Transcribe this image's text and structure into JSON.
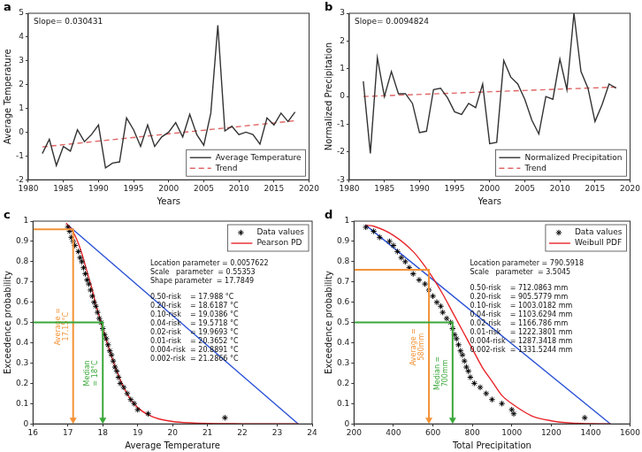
{
  "chart_data": [
    {
      "panel": "a",
      "type": "line",
      "x_label": "Years",
      "y_label": "Average Temperature",
      "annotation": "Slope= 0.030431",
      "grid": false,
      "legend": "lower right",
      "xlim": [
        1980,
        2020
      ],
      "xticks": [
        1980,
        1985,
        1990,
        1995,
        2000,
        2005,
        2010,
        2015,
        2020
      ],
      "ylim": [
        -2,
        5
      ],
      "yticks": [
        -2,
        -1,
        0,
        1,
        2,
        3,
        4,
        5
      ],
      "series": [
        {
          "name": "Average Temperature",
          "color": "#333333",
          "line_style": "solid",
          "x": [
            1982,
            1983,
            1984,
            1985,
            1986,
            1987,
            1988,
            1989,
            1990,
            1991,
            1992,
            1993,
            1994,
            1995,
            1996,
            1997,
            1998,
            1999,
            2000,
            2001,
            2002,
            2003,
            2004,
            2005,
            2006,
            2007,
            2008,
            2009,
            2010,
            2011,
            2012,
            2013,
            2014,
            2015,
            2016,
            2017,
            2018
          ],
          "values": [
            -0.9,
            -0.3,
            -1.4,
            -0.6,
            -0.8,
            0.1,
            -0.4,
            -0.1,
            0.3,
            -1.5,
            -1.3,
            -1.25,
            0.6,
            0.1,
            -0.6,
            0.3,
            -0.6,
            -0.2,
            0.0,
            0.4,
            -0.2,
            0.75,
            -0.1,
            -0.55,
            0.8,
            4.5,
            0.05,
            0.25,
            -0.1,
            0.0,
            -0.1,
            -0.5,
            0.6,
            0.3,
            0.8,
            0.45,
            0.85
          ]
        },
        {
          "name": "Trend",
          "color": "#e06666",
          "line_style": "dashed",
          "x": [
            1982,
            2018
          ],
          "values": [
            -0.62,
            0.48
          ]
        }
      ]
    },
    {
      "panel": "b",
      "type": "line",
      "x_label": "Years",
      "y_label": "Normalized Precipitation",
      "annotation": "Slope= 0.0094824",
      "grid": false,
      "legend": "lower right",
      "xlim": [
        1980,
        2020
      ],
      "xticks": [
        1980,
        1985,
        1990,
        1995,
        2000,
        2005,
        2010,
        2015,
        2020
      ],
      "ylim": [
        -3,
        3
      ],
      "yticks": [
        -3,
        -2,
        -1,
        0,
        1,
        2,
        3
      ],
      "series": [
        {
          "name": "Normalized Precipitation",
          "color": "#333333",
          "line_style": "solid",
          "x": [
            1982,
            1983,
            1984,
            1985,
            1986,
            1987,
            1988,
            1989,
            1990,
            1991,
            1992,
            1993,
            1994,
            1995,
            1996,
            1997,
            1998,
            1999,
            2000,
            2001,
            2002,
            2003,
            2004,
            2005,
            2006,
            2007,
            2008,
            2009,
            2010,
            2011,
            2012,
            2013,
            2014,
            2015,
            2016,
            2017,
            2018
          ],
          "values": [
            0.55,
            -2.05,
            1.4,
            0.0,
            0.9,
            0.1,
            0.1,
            -0.25,
            -1.3,
            -1.25,
            0.25,
            0.3,
            -0.05,
            -0.55,
            -0.65,
            -0.25,
            -0.4,
            0.45,
            -1.7,
            -1.65,
            1.3,
            0.7,
            0.45,
            -0.1,
            -0.85,
            -1.35,
            0.0,
            -0.1,
            1.35,
            0.25,
            3.0,
            0.9,
            0.3,
            -0.9,
            -0.3,
            0.45,
            0.3
          ]
        },
        {
          "name": "Trend",
          "color": "#e06666",
          "line_style": "dashed",
          "x": [
            1982,
            2018
          ],
          "values": [
            0.0,
            0.34
          ]
        }
      ]
    },
    {
      "panel": "c",
      "type": "line",
      "x_label": "Average Temperature",
      "y_label": "Exceedence probability",
      "grid": false,
      "legend": "upper right",
      "text_blocks": [
        [
          "Location parameter = 0.0057622",
          "Scale   parameter  = 0.55353",
          "Shape parameter  = 17.7849"
        ],
        [
          "0.50-risk    = 17.988 °C",
          "0.20-risk    = 18.6187 °C",
          "0.10-risk    = 19.0386 °C",
          "0.04-risk    = 19.5718 °C",
          "0.02-risk    = 19.9693 °C",
          "0.01-risk    = 20.3652 °C",
          "0.004-risk  = 20.8891 °C",
          "0.002-risk  = 21.2866 °C"
        ]
      ],
      "xlim": [
        16,
        24
      ],
      "xticks": [
        16,
        17,
        18,
        19,
        20,
        21,
        22,
        23,
        24
      ],
      "ylim": [
        0,
        1
      ],
      "yticks": [
        0,
        0.1,
        0.2,
        0.3,
        0.4,
        0.5,
        0.6,
        0.7,
        0.8,
        0.9,
        1
      ],
      "guides": [
        {
          "label": [
            "Average =",
            "17.15°C"
          ],
          "x": 17.15,
          "y": 0.96,
          "color": "#f39237"
        },
        {
          "label": [
            "Median",
            "= 18°C"
          ],
          "x": 18,
          "y": 0.5,
          "color": "#3aa83a"
        }
      ],
      "series": [
        {
          "name": "Data values",
          "type": "scatter",
          "marker": "star",
          "color": "#000000",
          "x": [
            17.0,
            17.05,
            17.1,
            17.15,
            17.2,
            17.3,
            17.35,
            17.4,
            17.45,
            17.5,
            17.55,
            17.6,
            17.65,
            17.7,
            17.75,
            17.8,
            17.85,
            17.9,
            17.95,
            18.0,
            18.05,
            18.1,
            18.15,
            18.2,
            18.25,
            18.3,
            18.35,
            18.4,
            18.45,
            18.5,
            18.6,
            18.7,
            18.8,
            18.9,
            19.0,
            19.3,
            21.5
          ],
          "values": [
            0.97,
            0.95,
            0.92,
            0.9,
            0.88,
            0.85,
            0.82,
            0.8,
            0.77,
            0.74,
            0.71,
            0.69,
            0.66,
            0.63,
            0.6,
            0.58,
            0.55,
            0.52,
            0.5,
            0.47,
            0.44,
            0.42,
            0.39,
            0.36,
            0.34,
            0.31,
            0.28,
            0.26,
            0.23,
            0.2,
            0.18,
            0.15,
            0.12,
            0.1,
            0.07,
            0.05,
            0.03
          ]
        },
        {
          "name": "Pearson PD",
          "type": "line",
          "line_style": "smooth",
          "color": "#e8262b",
          "x": [
            16.95,
            17.0,
            17.1,
            17.2,
            17.3,
            17.4,
            17.5,
            17.6,
            17.7,
            17.8,
            17.9,
            18.0,
            18.2,
            18.4,
            18.6,
            18.8,
            19.0,
            19.3,
            19.6,
            20.0,
            20.5,
            21.0,
            22.0,
            23.0,
            23.6
          ],
          "values": [
            0.99,
            0.98,
            0.96,
            0.93,
            0.89,
            0.84,
            0.78,
            0.72,
            0.66,
            0.59,
            0.53,
            0.47,
            0.36,
            0.26,
            0.18,
            0.12,
            0.08,
            0.045,
            0.025,
            0.012,
            0.005,
            0.002,
            0.0005,
            0.0001,
            0.0
          ]
        },
        {
          "type": "line",
          "line_style": "solid",
          "color": "#2a52d6",
          "x": [
            17,
            23.6
          ],
          "values": [
            0.98,
            0
          ]
        }
      ]
    },
    {
      "panel": "d",
      "type": "line",
      "x_label": "Total Precipitation",
      "y_label": "Exceedence probability",
      "grid": false,
      "legend": "upper right",
      "text_blocks": [
        [
          "Location parameter = 790.5918",
          "Scale   parameter  = 3.5045"
        ],
        [
          "0.50-risk    = 712.0863 mm",
          "0.20-risk    = 905.5779 mm",
          "0.10-risk    = 1003.0182 mm",
          "0.04-risk    = 1103.6294 mm",
          "0.02-risk    = 1166.786 mm",
          "0.01-risk    = 1222.3801 mm",
          "0.004-risk  = 1287.3418 mm",
          "0.002-risk  = 1331.5244 mm"
        ]
      ],
      "xlim": [
        200,
        1600
      ],
      "xticks": [
        200,
        400,
        600,
        800,
        1000,
        1200,
        1400,
        1600
      ],
      "ylim": [
        0,
        1
      ],
      "yticks": [
        0,
        0.1,
        0.2,
        0.3,
        0.4,
        0.5,
        0.6,
        0.7,
        0.8,
        0.9,
        1
      ],
      "guides": [
        {
          "label": [
            "Average =",
            "580mm"
          ],
          "x": 580,
          "y": 0.76,
          "color": "#f39237"
        },
        {
          "label": [
            "Median =",
            "700mm"
          ],
          "x": 700,
          "y": 0.5,
          "color": "#3aa83a"
        }
      ],
      "series": [
        {
          "name": "Data values",
          "type": "scatter",
          "marker": "star",
          "color": "#000000",
          "x": [
            260,
            300,
            330,
            380,
            400,
            420,
            440,
            460,
            480,
            500,
            530,
            560,
            580,
            600,
            620,
            640,
            650,
            670,
            690,
            700,
            710,
            720,
            730,
            740,
            750,
            760,
            770,
            780,
            790,
            810,
            840,
            870,
            900,
            950,
            1000,
            1010,
            1370
          ],
          "values": [
            0.97,
            0.95,
            0.92,
            0.9,
            0.88,
            0.85,
            0.82,
            0.8,
            0.77,
            0.74,
            0.71,
            0.69,
            0.66,
            0.63,
            0.6,
            0.58,
            0.55,
            0.52,
            0.5,
            0.47,
            0.44,
            0.42,
            0.39,
            0.36,
            0.34,
            0.31,
            0.28,
            0.26,
            0.23,
            0.2,
            0.18,
            0.15,
            0.12,
            0.1,
            0.07,
            0.05,
            0.03
          ]
        },
        {
          "name": "Weibull PDF",
          "type": "line",
          "line_style": "smooth",
          "color": "#e8262b",
          "x": [
            260,
            300,
            400,
            500,
            550,
            600,
            650,
            700,
            750,
            800,
            850,
            900,
            950,
            1000,
            1100,
            1200,
            1300,
            1400,
            1500
          ],
          "values": [
            0.98,
            0.975,
            0.93,
            0.85,
            0.79,
            0.72,
            0.64,
            0.55,
            0.46,
            0.37,
            0.28,
            0.21,
            0.14,
            0.1,
            0.04,
            0.015,
            0.004,
            0.001,
            0.0
          ]
        },
        {
          "type": "line",
          "line_style": "solid",
          "color": "#2a52d6",
          "x": [
            260,
            1500
          ],
          "values": [
            0.98,
            0
          ]
        }
      ]
    }
  ]
}
